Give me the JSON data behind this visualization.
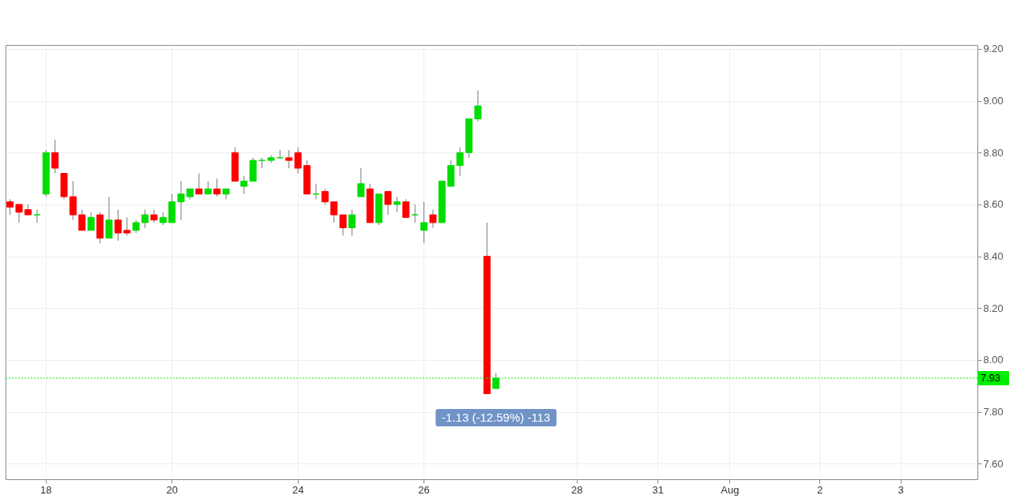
{
  "chart_data": {
    "type": "candlestick",
    "categories": [
      null,
      null,
      null,
      null,
      "18",
      null,
      null,
      null,
      null,
      null,
      null,
      null,
      null,
      null,
      null,
      null,
      null,
      null,
      "20",
      null,
      null,
      null,
      null,
      null,
      null,
      null,
      null,
      null,
      null,
      null,
      null,
      null,
      "24",
      null,
      null,
      null,
      null,
      null,
      null,
      null,
      null,
      null,
      null,
      null,
      null,
      null,
      "26",
      null,
      null,
      null,
      null,
      null,
      null,
      null,
      null,
      null,
      null,
      null,
      null,
      null,
      null,
      null,
      null,
      "28",
      null,
      null,
      null,
      null,
      null,
      null,
      null,
      null,
      "31",
      null,
      null,
      null,
      null,
      null,
      null,
      null,
      "Aug",
      null,
      null,
      null,
      null,
      null,
      null,
      null,
      null,
      null,
      "2",
      null,
      null,
      null,
      null,
      null,
      null,
      null,
      null,
      "3",
      null,
      null,
      null,
      null,
      null,
      null,
      null,
      null
    ],
    "ohlc": [
      [
        8.61,
        8.62,
        8.56,
        8.59
      ],
      [
        8.6,
        8.6,
        8.53,
        8.57
      ],
      [
        8.58,
        8.6,
        8.56,
        8.56
      ],
      [
        8.56,
        8.58,
        8.53,
        8.56
      ],
      [
        8.64,
        8.81,
        8.63,
        8.8
      ],
      [
        8.8,
        8.85,
        8.72,
        8.74
      ],
      [
        8.72,
        8.72,
        8.62,
        8.63
      ],
      [
        8.63,
        8.69,
        8.54,
        8.56
      ],
      [
        8.56,
        8.58,
        8.5,
        8.5
      ],
      [
        8.5,
        8.57,
        8.5,
        8.55
      ],
      [
        8.56,
        8.57,
        8.45,
        8.47
      ],
      [
        8.47,
        8.63,
        8.47,
        8.54
      ],
      [
        8.54,
        8.58,
        8.46,
        8.49
      ],
      [
        8.5,
        8.55,
        8.48,
        8.49
      ],
      [
        8.5,
        8.54,
        8.49,
        8.53
      ],
      [
        8.53,
        8.58,
        8.51,
        8.56
      ],
      [
        8.56,
        8.58,
        8.53,
        8.54
      ],
      [
        8.53,
        8.57,
        8.52,
        8.55
      ],
      [
        8.53,
        8.64,
        8.53,
        8.61
      ],
      [
        8.61,
        8.69,
        8.54,
        8.64
      ],
      [
        8.63,
        8.66,
        8.62,
        8.66
      ],
      [
        8.66,
        8.72,
        8.64,
        8.64
      ],
      [
        8.64,
        8.69,
        8.64,
        8.66
      ],
      [
        8.66,
        8.7,
        8.63,
        8.64
      ],
      [
        8.64,
        8.66,
        8.62,
        8.66
      ],
      [
        8.8,
        8.82,
        8.69,
        8.69
      ],
      [
        8.67,
        8.71,
        8.64,
        8.69
      ],
      [
        8.69,
        8.78,
        8.69,
        8.77
      ],
      [
        8.77,
        8.78,
        8.74,
        8.77
      ],
      [
        8.77,
        8.79,
        8.76,
        8.78
      ],
      [
        8.78,
        8.81,
        8.78,
        8.78
      ],
      [
        8.78,
        8.81,
        8.74,
        8.77
      ],
      [
        8.8,
        8.82,
        8.72,
        8.74
      ],
      [
        8.75,
        8.77,
        8.64,
        8.64
      ],
      [
        8.64,
        8.68,
        8.62,
        8.64
      ],
      [
        8.65,
        8.66,
        8.6,
        8.61
      ],
      [
        8.61,
        8.61,
        8.53,
        8.56
      ],
      [
        8.56,
        8.56,
        8.48,
        8.51
      ],
      [
        8.51,
        8.58,
        8.48,
        8.56
      ],
      [
        8.63,
        8.74,
        8.63,
        8.68
      ],
      [
        8.66,
        8.68,
        8.53,
        8.53
      ],
      [
        8.53,
        8.64,
        8.52,
        8.64
      ],
      [
        8.65,
        8.65,
        8.56,
        8.6
      ],
      [
        8.6,
        8.63,
        8.57,
        8.61
      ],
      [
        8.61,
        8.62,
        8.55,
        8.55
      ],
      [
        8.56,
        8.6,
        8.53,
        8.56
      ],
      [
        8.5,
        8.61,
        8.45,
        8.53
      ],
      [
        8.56,
        8.58,
        8.51,
        8.53
      ],
      [
        8.53,
        8.69,
        8.53,
        8.69
      ],
      [
        8.67,
        8.77,
        8.67,
        8.75
      ],
      [
        8.75,
        8.82,
        8.71,
        8.8
      ],
      [
        8.8,
        8.93,
        8.78,
        8.93
      ],
      [
        8.93,
        9.04,
        8.92,
        8.98
      ],
      [
        8.4,
        8.53,
        7.87,
        7.87
      ],
      [
        7.89,
        7.95,
        7.89,
        7.93
      ],
      null,
      null,
      null,
      null,
      null,
      null,
      null,
      null,
      null,
      null,
      null,
      null,
      null,
      null,
      null,
      null,
      null,
      null,
      null,
      null,
      null,
      null,
      null,
      null,
      null,
      null,
      null,
      null,
      null,
      null,
      null,
      null,
      null,
      null,
      null,
      null,
      null,
      null,
      null,
      null,
      null,
      null,
      null,
      null,
      null,
      null,
      null,
      null,
      null,
      null,
      null,
      null,
      null
    ],
    "colors": [
      "#ff0000",
      "#ff0000",
      "#ff0000",
      "#00dd00",
      "#00dd00",
      "#ff0000",
      "#ff0000",
      "#ff0000",
      "#ff0000",
      "#00dd00",
      "#ff0000",
      "#00dd00",
      "#ff0000",
      "#ff0000",
      "#00dd00",
      "#00dd00",
      "#ff0000",
      "#00dd00",
      "#00dd00",
      "#00dd00",
      "#00dd00",
      "#ff0000",
      "#00dd00",
      "#ff0000",
      "#00dd00",
      "#ff0000",
      "#00dd00",
      "#00dd00",
      "#00dd00",
      "#00dd00",
      "#00dd00",
      "#ff0000",
      "#ff0000",
      "#ff0000",
      "#00dd00",
      "#ff0000",
      "#ff0000",
      "#ff0000",
      "#00dd00",
      "#00dd00",
      "#ff0000",
      "#00dd00",
      "#ff0000",
      "#00dd00",
      "#ff0000",
      "#00dd00",
      "#00dd00",
      "#ff0000",
      "#00dd00",
      "#00dd00",
      "#00dd00",
      "#00dd00",
      "#00dd00",
      "#ff0000",
      "#00dd00",
      null,
      null,
      null,
      null,
      null,
      null,
      null,
      null,
      null,
      null,
      null,
      null,
      null,
      null,
      null,
      null,
      null,
      null,
      null,
      null,
      null,
      null,
      null,
      null,
      null,
      null,
      null,
      null,
      null,
      null,
      null,
      null,
      null,
      null,
      null,
      null,
      null,
      null,
      null,
      null,
      null,
      null,
      null,
      null,
      null,
      null,
      null,
      null,
      null,
      null,
      null,
      null,
      null
    ],
    "ylim": [
      7.54,
      9.215
    ],
    "yticks": [
      {
        "value": 7.6,
        "label": "7.60"
      },
      {
        "value": 7.8,
        "label": "7.80"
      },
      {
        "value": 8,
        "label": "8.00"
      },
      {
        "value": 8.2,
        "label": "8.20"
      },
      {
        "value": 8.4,
        "label": "8.40"
      },
      {
        "value": 8.6,
        "label": "8.60"
      },
      {
        "value": 8.8,
        "label": "8.80"
      },
      {
        "value": 9,
        "label": "9.00"
      },
      {
        "value": 9.2,
        "label": "9.20"
      }
    ],
    "grid": true,
    "ref_lines": [
      {
        "axis": "y",
        "value": 7.93,
        "label": "7.93",
        "color": "#00ee00",
        "line_style": "dotted"
      }
    ],
    "annotations": [
      "-1.13 (-12.59%) -113"
    ]
  }
}
